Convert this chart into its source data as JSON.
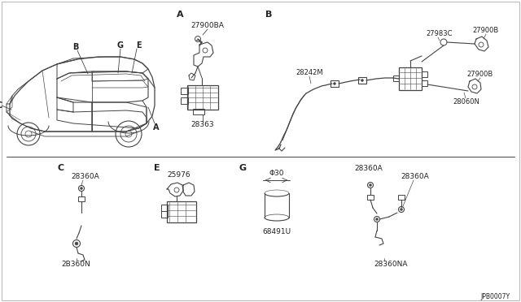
{
  "bg_color": "#ffffff",
  "line_color": "#444444",
  "text_color": "#222222",
  "fig_width": 6.4,
  "fig_height": 3.72,
  "dpi": 100,
  "part_numbers": {
    "secA_top": "27900BA",
    "secA_bot": "28363",
    "secB_label": "B",
    "secB_1": "27983C",
    "secB_2": "27900B",
    "secB_3": "28242M",
    "secB_4": "27900B",
    "secB_5": "28060N",
    "secC_top": "28360A",
    "secC_bot": "2B360N",
    "secE_top": "25976",
    "secG_dim": "Φ30",
    "secG_part": "68491U",
    "secG2_top1": "28360A",
    "secG2_top2": "28360A",
    "secG2_bot": "28360NA",
    "footer": "JPB0007Y"
  }
}
